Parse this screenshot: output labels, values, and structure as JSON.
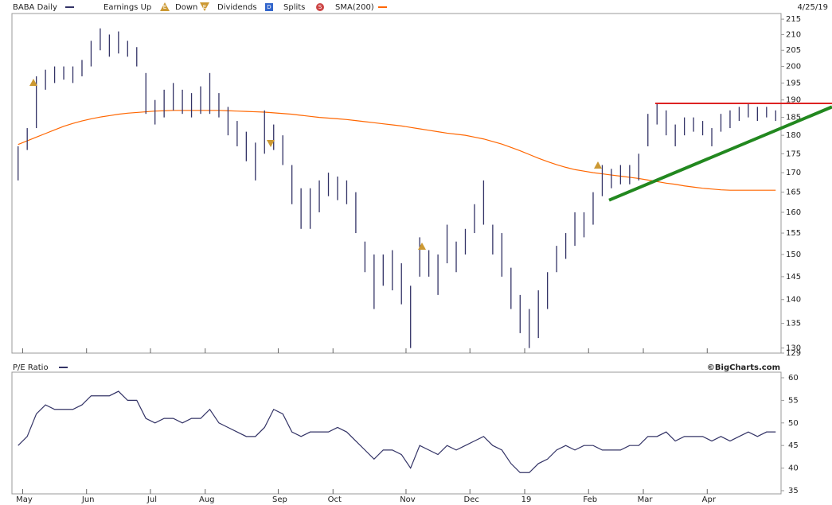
{
  "chart_data": [
    {
      "type": "stock",
      "date": "4/25/19",
      "log_scale": true,
      "categories": [
        null,
        "May",
        null,
        null,
        null,
        null,
        null,
        null,
        "Jun",
        null,
        null,
        null,
        null,
        null,
        null,
        "Jul",
        null,
        null,
        null,
        null,
        null,
        "Aug",
        null,
        null,
        null,
        null,
        null,
        null,
        null,
        "Sep",
        null,
        null,
        null,
        null,
        null,
        "Oct",
        null,
        null,
        null,
        null,
        null,
        null,
        null,
        "Nov",
        null,
        null,
        null,
        null,
        null,
        null,
        "Dec",
        null,
        null,
        null,
        null,
        null,
        "19",
        null,
        null,
        null,
        null,
        null,
        null,
        "Feb",
        null,
        null,
        null,
        null,
        null,
        "Mar",
        null,
        null,
        null,
        null,
        null,
        null,
        "Apr",
        null,
        null,
        null,
        null,
        null,
        null,
        null
      ],
      "series": [
        {
          "name": "BABA Daily",
          "color": "#333366",
          "high": [
            177,
            182,
            197,
            199,
            200,
            200,
            200,
            202,
            208,
            212,
            210,
            211,
            208,
            206,
            198,
            190,
            193,
            195,
            193,
            192,
            194,
            198,
            192,
            188,
            184,
            181,
            178,
            187,
            183,
            180,
            172,
            166,
            166,
            168,
            170,
            169,
            168,
            165,
            153,
            150,
            150,
            151,
            148,
            143,
            154,
            151,
            150,
            157,
            153,
            156,
            162,
            168,
            157,
            155,
            147,
            141,
            138,
            142,
            146,
            152,
            155,
            160,
            160,
            165,
            172,
            171,
            172,
            172,
            175,
            186,
            189,
            187,
            183,
            185,
            185,
            184,
            182,
            186,
            187,
            188,
            189,
            188,
            188,
            187
          ],
          "low": [
            168,
            176,
            182,
            193,
            195,
            196,
            195,
            197,
            200,
            205,
            203,
            204,
            203,
            200,
            186,
            183,
            185,
            187,
            186,
            185,
            186,
            186,
            185,
            180,
            177,
            173,
            168,
            175,
            176,
            172,
            162,
            156,
            156,
            160,
            164,
            163,
            162,
            155,
            146,
            138,
            143,
            142,
            139,
            130,
            145,
            145,
            141,
            148,
            146,
            150,
            155,
            157,
            150,
            145,
            138,
            133,
            130,
            132,
            138,
            146,
            149,
            152,
            154,
            157,
            164,
            166,
            167,
            167,
            168,
            177,
            183,
            180,
            177,
            180,
            181,
            180,
            177,
            181,
            182,
            184,
            185,
            184,
            185,
            184
          ]
        },
        {
          "name": "SMA(200)",
          "color": "#ff6600",
          "values": [
            177.5,
            178.5,
            179.5,
            180.5,
            181.5,
            182.5,
            183.3,
            184,
            184.6,
            185.1,
            185.5,
            185.9,
            186.2,
            186.4,
            186.6,
            186.8,
            186.9,
            187,
            187,
            187,
            187,
            187,
            187,
            186.9,
            186.8,
            186.7,
            186.6,
            186.5,
            186.3,
            186.1,
            185.9,
            185.6,
            185.3,
            185,
            184.8,
            184.6,
            184.4,
            184.1,
            183.8,
            183.5,
            183.2,
            182.9,
            182.6,
            182.2,
            181.8,
            181.4,
            181,
            180.6,
            180.3,
            180,
            179.5,
            179,
            178.3,
            177.6,
            176.7,
            175.8,
            174.8,
            173.8,
            172.9,
            172.1,
            171.4,
            170.8,
            170.4,
            170,
            169.7,
            169.4,
            169.1,
            168.8,
            168.5,
            168.1,
            167.7,
            167.3,
            167,
            166.6,
            166.3,
            166,
            165.8,
            165.6,
            165.5,
            165.5,
            165.5,
            165.5,
            165.5,
            165.5
          ]
        }
      ],
      "legend": [
        {
          "name": "Earnings Up",
          "symbol": "E",
          "color": "#cc9933"
        },
        {
          "name": "Down",
          "symbol": "E",
          "color": "#cc9933"
        },
        {
          "name": "Dividends",
          "symbol": "D",
          "color": "#3366cc"
        },
        {
          "name": "Splits",
          "symbol": "S",
          "color": "#cc4444"
        }
      ],
      "resistance": {
        "value": 189,
        "color": "#dd2222"
      },
      "trendline": {
        "values": [
          163,
          188
        ],
        "color": "#22881f"
      },
      "ylim": [
        129,
        216.6
      ],
      "yticks": [
        215,
        210,
        205,
        200,
        195,
        190,
        185,
        180,
        175,
        170,
        165,
        160,
        155,
        150,
        145,
        140,
        135,
        130,
        129
      ]
    },
    {
      "type": "line",
      "title": "P/E Ratio",
      "watermark": "©BigCharts.com",
      "color": "#333366",
      "values": [
        45,
        47,
        52,
        54,
        53,
        53,
        53,
        54,
        56,
        56,
        56,
        57,
        55,
        55,
        51,
        50,
        51,
        51,
        50,
        51,
        51,
        53,
        50,
        49,
        48,
        47,
        47,
        49,
        53,
        52,
        48,
        47,
        48,
        48,
        48,
        49,
        48,
        46,
        44,
        42,
        44,
        44,
        43,
        40,
        45,
        44,
        43,
        45,
        44,
        45,
        46,
        47,
        45,
        44,
        41,
        39,
        39,
        41,
        42,
        44,
        45,
        44,
        45,
        45,
        44,
        44,
        44,
        45,
        45,
        47,
        47,
        48,
        46,
        47,
        47,
        47,
        46,
        47,
        46,
        47,
        48,
        47,
        48,
        48
      ],
      "ylim": [
        35,
        60
      ],
      "yticks": [
        60,
        55,
        50,
        45,
        40,
        35
      ]
    }
  ]
}
